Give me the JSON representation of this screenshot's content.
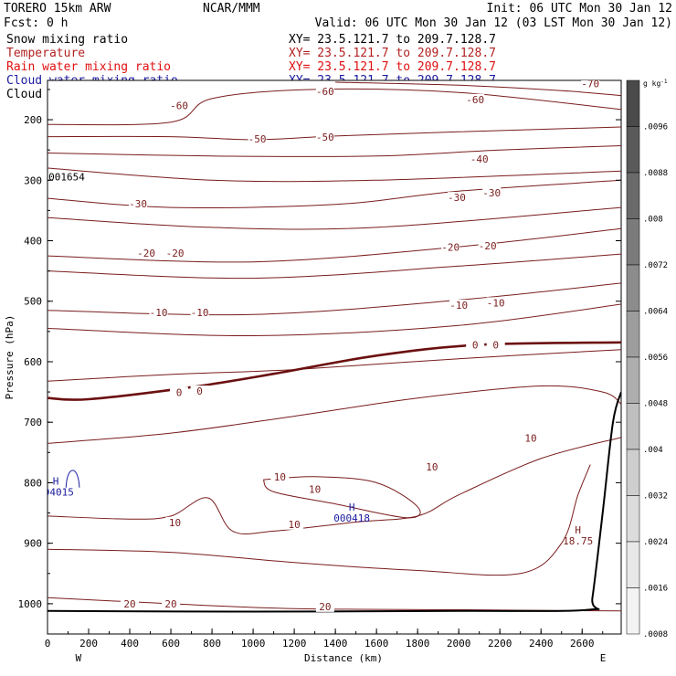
{
  "header": {
    "model": "TORERO  15km ARW",
    "center": "NCAR/MMM",
    "init": "Init: 06 UTC Mon 30 Jan 12",
    "fcst": "Fcst:    0 h",
    "valid": "Valid: 06 UTC Mon 30 Jan 12 (03 LST Mon 30 Jan 12)"
  },
  "fields": [
    {
      "name": "Snow mixing ratio",
      "xy": "XY=  23.5.121.7 to 209.7.128.7",
      "color": "#000000"
    },
    {
      "name": "Temperature",
      "xy": "XY=  23.5.121.7 to 209.7.128.7",
      "color": "#b22222"
    },
    {
      "name": "Rain water mixing ratio",
      "xy": "XY=  23.5.121.7 to 209.7.128.7",
      "color": "#e01010"
    },
    {
      "name": "Cloud water mixing ratio",
      "xy": "XY=  23.5.121.7 to 209.7.128.7",
      "color": "#1a1aa0"
    },
    {
      "name": "Cloud ice mixing ratio",
      "xy": "XY=  23.5.121.7 to 209.7.128.7",
      "color": "#000000"
    }
  ],
  "chart_data": {
    "type": "contour",
    "xlabel": "Distance (km)",
    "ylabel": "Pressure (hPa)",
    "xlim": [
      0,
      2790
    ],
    "ylim": [
      1050,
      135
    ],
    "x_ticks": [
      "0",
      "200",
      "400",
      "600",
      "800",
      "1000",
      "1200",
      "1400",
      "1600",
      "1800",
      "2000",
      "2200",
      "2400",
      "2600"
    ],
    "y_ticks": [
      "200",
      "300",
      "400",
      "500",
      "600",
      "700",
      "800",
      "900",
      "1000"
    ],
    "x_ends": [
      "W",
      "E"
    ],
    "temperature_contours": [
      {
        "level": -70,
        "points": [
          [
            1400,
            138
          ],
          [
            2000,
            143
          ],
          [
            2500,
            152
          ],
          [
            2790,
            160
          ]
        ]
      },
      {
        "level": -60,
        "points": [
          [
            0,
            208
          ],
          [
            600,
            204
          ],
          [
            800,
            165
          ],
          [
            1300,
            150
          ],
          [
            2000,
            155
          ],
          [
            2790,
            183
          ]
        ]
      },
      {
        "level": -50,
        "points": [
          [
            0,
            228
          ],
          [
            600,
            228
          ],
          [
            1000,
            233
          ],
          [
            1400,
            227
          ],
          [
            2000,
            220
          ],
          [
            2790,
            212
          ]
        ]
      },
      {
        "level": -50,
        "points": [
          [
            0,
            255
          ],
          [
            800,
            260
          ],
          [
            1600,
            260
          ],
          [
            2200,
            250
          ],
          [
            2790,
            243
          ]
        ]
      },
      {
        "level": -40,
        "points": [
          [
            0,
            280
          ],
          [
            800,
            300
          ],
          [
            1600,
            300
          ],
          [
            2790,
            285
          ]
        ]
      },
      {
        "level": -30,
        "points": [
          [
            0,
            330
          ],
          [
            600,
            345
          ],
          [
            1400,
            340
          ],
          [
            2000,
            318
          ],
          [
            2790,
            300
          ]
        ]
      },
      {
        "level": -30,
        "points": [
          [
            0,
            362
          ],
          [
            800,
            378
          ],
          [
            1600,
            378
          ],
          [
            2790,
            345
          ]
        ]
      },
      {
        "level": -20,
        "points": [
          [
            0,
            425
          ],
          [
            1000,
            435
          ],
          [
            2000,
            410
          ],
          [
            2790,
            380
          ]
        ]
      },
      {
        "level": -20,
        "points": [
          [
            0,
            450
          ],
          [
            1000,
            462
          ],
          [
            2000,
            442
          ],
          [
            2790,
            422
          ]
        ]
      },
      {
        "level": -10,
        "points": [
          [
            0,
            515
          ],
          [
            1000,
            522
          ],
          [
            2000,
            498
          ],
          [
            2790,
            470
          ]
        ]
      },
      {
        "level": -10,
        "points": [
          [
            0,
            545
          ],
          [
            1000,
            557
          ],
          [
            2000,
            540
          ],
          [
            2790,
            505
          ]
        ]
      },
      {
        "level": 0,
        "points": [
          [
            0,
            660
          ],
          [
            200,
            662
          ],
          [
            700,
            642
          ],
          [
            1100,
            620
          ],
          [
            1600,
            590
          ],
          [
            2100,
            572
          ],
          [
            2790,
            568
          ]
        ]
      },
      {
        "level": 10,
        "points": [
          [
            0,
            632
          ],
          [
            600,
            621
          ],
          [
            1200,
            613
          ],
          [
            2000,
            595
          ],
          [
            2790,
            580
          ]
        ]
      },
      {
        "level": 10,
        "points": [
          [
            0,
            735
          ],
          [
            600,
            718
          ],
          [
            1200,
            690
          ],
          [
            1800,
            660
          ],
          [
            2400,
            640
          ],
          [
            2700,
            650
          ],
          [
            2790,
            670
          ]
        ]
      },
      {
        "level": 10,
        "points": [
          [
            0,
            855
          ],
          [
            400,
            860
          ],
          [
            600,
            855
          ],
          [
            780,
            825
          ],
          [
            900,
            880
          ],
          [
            1100,
            880
          ],
          [
            1500,
            865
          ],
          [
            1800,
            855
          ],
          [
            2000,
            820
          ],
          [
            2400,
            760
          ],
          [
            2790,
            725
          ]
        ]
      },
      {
        "level": 10,
        "points": [
          [
            1050,
            795
          ],
          [
            1300,
            790
          ],
          [
            1600,
            800
          ],
          [
            1800,
            840
          ],
          [
            1750,
            858
          ],
          [
            1400,
            835
          ],
          [
            1100,
            815
          ],
          [
            1050,
            795
          ]
        ]
      },
      {
        "level": 20,
        "points": [
          [
            0,
            910
          ],
          [
            600,
            915
          ],
          [
            1200,
            932
          ],
          [
            1800,
            945
          ],
          [
            2300,
            950
          ],
          [
            2500,
            900
          ],
          [
            2580,
            820
          ],
          [
            2640,
            770
          ]
        ]
      },
      {
        "level": 20,
        "points": [
          [
            0,
            990
          ],
          [
            600,
            1000
          ],
          [
            1200,
            1008
          ],
          [
            2000,
            1010
          ],
          [
            2790,
            1012
          ]
        ]
      }
    ],
    "temperature_labels": [
      {
        "text": "-70",
        "x": 2640,
        "y": 142
      },
      {
        "text": "-60",
        "x": 640,
        "y": 178
      },
      {
        "text": "-60",
        "x": 1350,
        "y": 155
      },
      {
        "text": "-60",
        "x": 2080,
        "y": 168
      },
      {
        "text": "-50",
        "x": 1020,
        "y": 233
      },
      {
        "text": "-50",
        "x": 1350,
        "y": 230
      },
      {
        "text": "-40",
        "x": 2100,
        "y": 266
      },
      {
        "text": "-30",
        "x": 440,
        "y": 340
      },
      {
        "text": "-30",
        "x": 1990,
        "y": 330
      },
      {
        "text": "-30",
        "x": 2160,
        "y": 322
      },
      {
        "text": "-20",
        "x": 480,
        "y": 422
      },
      {
        "text": "-20",
        "x": 620,
        "y": 422
      },
      {
        "text": "-20",
        "x": 1960,
        "y": 412
      },
      {
        "text": "-20",
        "x": 2140,
        "y": 410
      },
      {
        "text": "-10",
        "x": 540,
        "y": 520
      },
      {
        "text": "-10",
        "x": 740,
        "y": 520
      },
      {
        "text": "-10",
        "x": 2000,
        "y": 508
      },
      {
        "text": "-10",
        "x": 2180,
        "y": 504
      },
      {
        "text": "0",
        "x": 2080,
        "y": 574
      },
      {
        "text": "0",
        "x": 2180,
        "y": 574
      },
      {
        "text": "0",
        "x": 640,
        "y": 652
      },
      {
        "text": "0",
        "x": 740,
        "y": 650
      },
      {
        "text": "10",
        "x": 2350,
        "y": 728
      },
      {
        "text": "10",
        "x": 1870,
        "y": 775
      },
      {
        "text": "10",
        "x": 1130,
        "y": 792
      },
      {
        "text": "10",
        "x": 1300,
        "y": 812
      },
      {
        "text": "10",
        "x": 620,
        "y": 867
      },
      {
        "text": "10",
        "x": 1200,
        "y": 870
      },
      {
        "text": "20",
        "x": 400,
        "y": 1002
      },
      {
        "text": "20",
        "x": 600,
        "y": 1002
      },
      {
        "text": "20",
        "x": 1350,
        "y": 1006
      }
    ],
    "freezing_level": {
      "level": 0,
      "points": [
        [
          0,
          660
        ],
        [
          200,
          662
        ],
        [
          700,
          642
        ],
        [
          1100,
          620
        ],
        [
          1600,
          590
        ],
        [
          2100,
          572
        ],
        [
          2790,
          568
        ]
      ]
    },
    "terrain": {
      "points": [
        [
          0,
          1012
        ],
        [
          1000,
          1013
        ],
        [
          2000,
          1012
        ],
        [
          2630,
          1010
        ],
        [
          2650,
          990
        ],
        [
          2700,
          850
        ],
        [
          2750,
          700
        ],
        [
          2790,
          650
        ]
      ]
    },
    "extrema": [
      {
        "mark": "H",
        "value": "18.75",
        "x": 2580,
        "y": 893,
        "color": "#7a1c1c"
      },
      {
        "mark": "H",
        "value": "000418",
        "x": 1480,
        "y": 855,
        "color": "#1a1aa0"
      },
      {
        "mark": "H",
        "value": "004015",
        "x": 40,
        "y": 812,
        "color": "#1a1aa0"
      }
    ],
    "annotations": [
      {
        "text": "001654",
        "x": 5,
        "y": 300
      }
    ],
    "colorbar": {
      "unit": "g kg",
      "unit_exp": "-1",
      "labels": [
        ".0096",
        ".0088",
        ".008",
        ".0072",
        ".0064",
        ".0056",
        ".0048",
        ".004",
        ".0032",
        ".0024",
        ".0016",
        ".0008"
      ],
      "shades": [
        "#4a4a4a",
        "#5a5a5a",
        "#6a6a6a",
        "#7b7b7b",
        "#8c8c8c",
        "#9d9d9d",
        "#aeaeae",
        "#bfbfbf",
        "#cecece",
        "#dcdcdc",
        "#e8e8e8",
        "#f3f3f3"
      ]
    }
  }
}
